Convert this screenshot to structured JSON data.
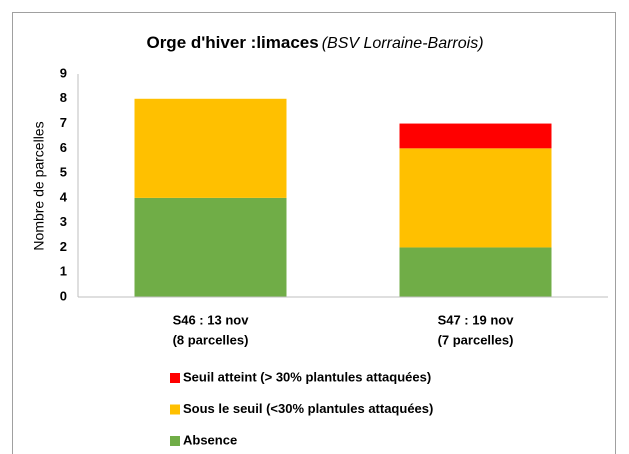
{
  "chart_data": {
    "type": "stacked-bar",
    "title": "Orge d'hiver :limaces",
    "title_note": "(BSV Lorraine-Barrois)",
    "ylabel": "Nombre de parcelles",
    "categories": [
      [
        "S46 : 13 nov",
        "(8 parcelles)"
      ],
      [
        "S47 : 19 nov",
        "(7 parcelles)"
      ]
    ],
    "series": [
      {
        "name": "Absence",
        "color": "#70ad47",
        "values": [
          4,
          2
        ]
      },
      {
        "name": "Sous le seuil (<30% plantules attaquées)",
        "color": "#ffc000",
        "values": [
          4,
          4
        ]
      },
      {
        "name": "Seuil atteint (> 30% plantules attaquées)",
        "color": "#ff0000",
        "values": [
          0,
          1
        ]
      }
    ],
    "ylim": [
      0,
      9
    ],
    "yticks": [
      0,
      1,
      2,
      3,
      4,
      5,
      6,
      7,
      8,
      9
    ],
    "grid": false
  }
}
